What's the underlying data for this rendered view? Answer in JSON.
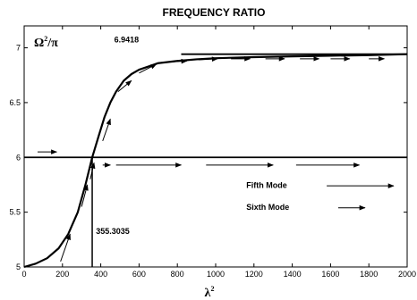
{
  "chart_data": {
    "type": "line",
    "title": "FREQUENCY RATIO",
    "xlabel": "λ",
    "xlabel_sup": "2",
    "ylabel_base": "Ω",
    "ylabel_sup": "2",
    "ylabel_tail": "/π",
    "xlim": [
      0,
      2000
    ],
    "ylim": [
      5,
      7.2
    ],
    "xticks": [
      0,
      200,
      400,
      600,
      800,
      1000,
      1200,
      1400,
      1600,
      1800,
      2000
    ],
    "yticks": [
      5,
      5.5,
      6,
      6.5,
      7
    ],
    "ytick_labels": [
      "5",
      "5.5",
      "6",
      "6.5",
      "7"
    ],
    "series": [
      {
        "name": "Fifth Mode",
        "style": "solid",
        "x": [
          0,
          60,
          120,
          180,
          230,
          280,
          320,
          355.3035,
          390,
          420,
          450,
          480,
          520,
          560,
          600,
          650,
          700,
          800,
          900,
          1000,
          1200,
          1400,
          1600,
          1800,
          2000
        ],
        "y": [
          5.0,
          5.03,
          5.08,
          5.17,
          5.3,
          5.5,
          5.75,
          6.0,
          6.2,
          6.37,
          6.5,
          6.6,
          6.7,
          6.76,
          6.8,
          6.83,
          6.86,
          6.88,
          6.895,
          6.905,
          6.915,
          6.922,
          6.928,
          6.933,
          6.9418
        ]
      }
    ],
    "hlines": [
      {
        "y": 6.0,
        "xmin": 0,
        "xmax": 2000
      },
      {
        "y": 6.9418,
        "xmin": 820,
        "xmax": 2000
      }
    ],
    "vlines": [
      {
        "x": 355.3035,
        "ymin": 5.0,
        "ymax": 6.0
      }
    ],
    "arrows": [
      {
        "x1": 70,
        "y1": 6.05,
        "x2": 170,
        "y2": 6.05
      },
      {
        "x1": 190,
        "y1": 5.05,
        "x2": 240,
        "y2": 5.3
      },
      {
        "x1": 300,
        "y1": 5.55,
        "x2": 330,
        "y2": 5.75
      },
      {
        "x1": 345,
        "y1": 5.8,
        "x2": 365,
        "y2": 5.95
      },
      {
        "x1": 410,
        "y1": 5.93,
        "x2": 450,
        "y2": 5.93
      },
      {
        "x1": 410,
        "y1": 6.15,
        "x2": 450,
        "y2": 6.35
      },
      {
        "x1": 490,
        "y1": 6.6,
        "x2": 560,
        "y2": 6.7
      },
      {
        "x1": 600,
        "y1": 6.77,
        "x2": 690,
        "y2": 6.85
      },
      {
        "x1": 750,
        "y1": 6.87,
        "x2": 850,
        "y2": 6.88
      },
      {
        "x1": 910,
        "y1": 6.89,
        "x2": 1010,
        "y2": 6.9
      },
      {
        "x1": 1080,
        "y1": 6.9,
        "x2": 1180,
        "y2": 6.9
      },
      {
        "x1": 1260,
        "y1": 6.9,
        "x2": 1360,
        "y2": 6.9
      },
      {
        "x1": 1440,
        "y1": 6.9,
        "x2": 1540,
        "y2": 6.9
      },
      {
        "x1": 1600,
        "y1": 6.9,
        "x2": 1700,
        "y2": 6.9
      },
      {
        "x1": 1800,
        "y1": 6.9,
        "x2": 1880,
        "y2": 6.9
      },
      {
        "x1": 480,
        "y1": 5.93,
        "x2": 820,
        "y2": 5.93
      },
      {
        "x1": 950,
        "y1": 5.93,
        "x2": 1300,
        "y2": 5.93
      },
      {
        "x1": 1420,
        "y1": 5.93,
        "x2": 1750,
        "y2": 5.93
      }
    ],
    "annotations": [
      {
        "text": "6.9418",
        "x": 470,
        "y": 7.05
      },
      {
        "text": "355.3035",
        "x": 375,
        "y": 5.3
      },
      {
        "text": "Fifth Mode",
        "x": 1160,
        "y": 5.72
      },
      {
        "text": "Sixth Mode",
        "x": 1160,
        "y": 5.52
      }
    ],
    "legend": [
      {
        "label": "Fifth Mode",
        "x1": 1580,
        "x2": 1930,
        "y": 5.74
      },
      {
        "label": "Sixth Mode",
        "x1": 1640,
        "x2": 1780,
        "y": 5.54
      }
    ],
    "grid": false
  }
}
